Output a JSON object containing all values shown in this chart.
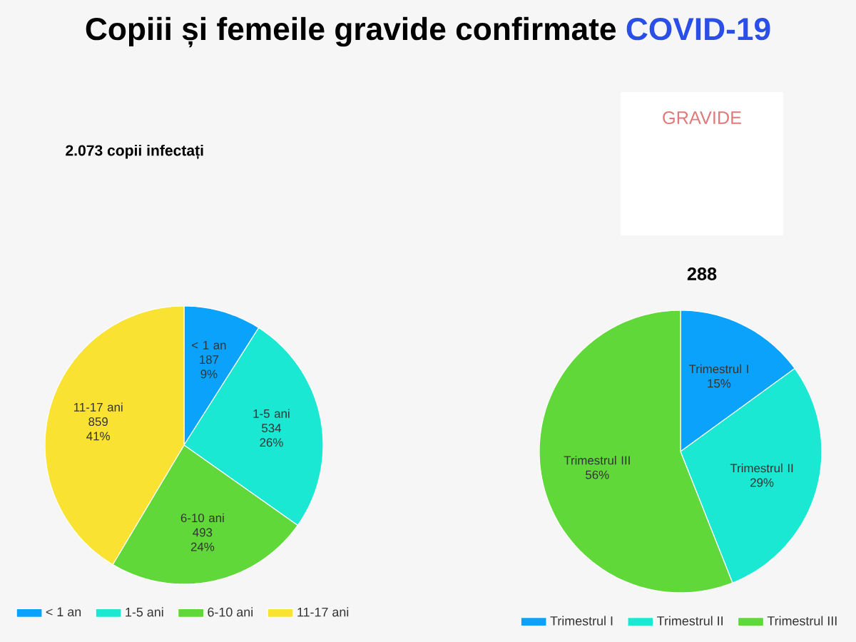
{
  "chart_data": [
    {
      "type": "pie",
      "title": "Copiii și femeile gravide confirmate",
      "annotations": [
        "COVID-19"
      ],
      "subtitle": "2.073 copii infectați",
      "categories": [
        "< 1 an",
        "1-5 ani",
        "6-10 ani",
        "11-17 ani"
      ],
      "values": [
        187,
        534,
        493,
        859
      ],
      "value_labels": [
        "187\n9%",
        "534\n26%",
        "493\n24%",
        "859\n41%"
      ],
      "colors": [
        "#0aa2fb",
        "#1ae8d2",
        "#60d83a",
        "#f9e232"
      ],
      "legend": "bottom"
    },
    {
      "type": "pie",
      "title": "288",
      "annotations": [
        "GRAVIDE"
      ],
      "categories": [
        "Trimestrul I",
        "Trimestrul II",
        "Trimestrul III"
      ],
      "values": [
        15,
        29,
        56
      ],
      "value_labels": [
        "15%",
        "29%",
        "56%"
      ],
      "colors": [
        "#0aa2fb",
        "#1ae8d2",
        "#60d83a"
      ],
      "legend": "bottom"
    }
  ]
}
